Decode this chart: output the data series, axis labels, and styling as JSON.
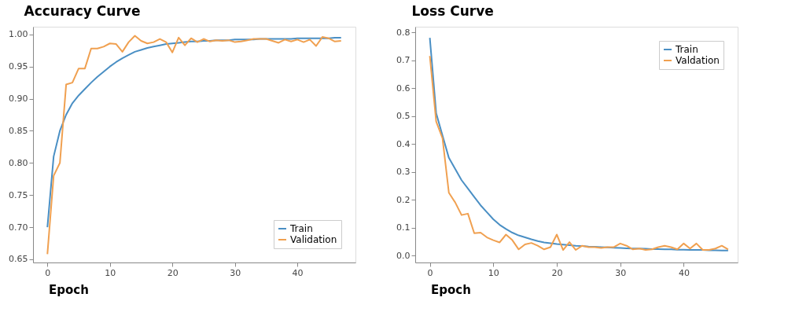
{
  "chart_data": [
    {
      "type": "line",
      "title": "Accuracy Curve",
      "xlabel": "Epoch",
      "x": [
        0,
        1,
        2,
        3,
        4,
        5,
        6,
        7,
        8,
        9,
        10,
        11,
        12,
        13,
        14,
        15,
        16,
        17,
        18,
        19,
        20,
        21,
        22,
        23,
        24,
        25,
        26,
        27,
        28,
        29,
        30,
        31,
        32,
        33,
        34,
        35,
        36,
        37,
        38,
        39,
        40,
        41,
        42,
        43,
        44,
        45,
        46,
        47
      ],
      "series": [
        {
          "name": "Train",
          "color": "#4a8fc4",
          "values": [
            0.7,
            0.81,
            0.85,
            0.875,
            0.893,
            0.905,
            0.915,
            0.925,
            0.934,
            0.942,
            0.95,
            0.957,
            0.963,
            0.968,
            0.973,
            0.976,
            0.979,
            0.981,
            0.983,
            0.985,
            0.986,
            0.987,
            0.988,
            0.989,
            0.989,
            0.99,
            0.99,
            0.991,
            0.991,
            0.991,
            0.992,
            0.992,
            0.992,
            0.992,
            0.993,
            0.993,
            0.993,
            0.993,
            0.993,
            0.993,
            0.994,
            0.994,
            0.994,
            0.994,
            0.994,
            0.994,
            0.995,
            0.995
          ]
        },
        {
          "name": "Validation",
          "color": "#f0a050",
          "values": [
            0.658,
            0.78,
            0.8,
            0.922,
            0.925,
            0.947,
            0.947,
            0.978,
            0.978,
            0.981,
            0.986,
            0.985,
            0.973,
            0.988,
            0.998,
            0.99,
            0.986,
            0.988,
            0.993,
            0.988,
            0.972,
            0.995,
            0.983,
            0.994,
            0.988,
            0.993,
            0.989,
            0.991,
            0.99,
            0.991,
            0.988,
            0.989,
            0.991,
            0.993,
            0.993,
            0.993,
            0.99,
            0.987,
            0.992,
            0.989,
            0.992,
            0.988,
            0.992,
            0.982,
            0.996,
            0.994,
            0.989,
            0.99
          ]
        }
      ],
      "xlim": [
        -2.3,
        49.3
      ],
      "xticks": [
        0,
        10,
        20,
        30,
        40
      ],
      "ylim": [
        0.645,
        1.012
      ],
      "yticks": [
        {
          "value": 0.65,
          "label": "0.65"
        },
        {
          "value": 0.7,
          "label": "0.70"
        },
        {
          "value": 0.75,
          "label": "0.75"
        },
        {
          "value": 0.8,
          "label": "0.80"
        },
        {
          "value": 0.85,
          "label": "0.85"
        },
        {
          "value": 0.9,
          "label": "0.90"
        },
        {
          "value": 0.95,
          "label": "0.95"
        },
        {
          "value": 1.0,
          "label": "1.00"
        }
      ],
      "legend": "bottom right",
      "grid": false,
      "marker": "none",
      "line_style": "solid"
    },
    {
      "type": "line",
      "title": "Loss Curve",
      "xlabel": "Epoch",
      "x": [
        0,
        1,
        2,
        3,
        4,
        5,
        6,
        7,
        8,
        9,
        10,
        11,
        12,
        13,
        14,
        15,
        16,
        17,
        18,
        19,
        20,
        21,
        22,
        23,
        24,
        25,
        26,
        27,
        28,
        29,
        30,
        31,
        32,
        33,
        34,
        35,
        36,
        37,
        38,
        39,
        40,
        41,
        42,
        43,
        44,
        45,
        46,
        47
      ],
      "series": [
        {
          "name": "Train",
          "color": "#4a8fc4",
          "values": [
            0.78,
            0.51,
            0.43,
            0.35,
            0.31,
            0.27,
            0.24,
            0.21,
            0.18,
            0.155,
            0.13,
            0.11,
            0.095,
            0.082,
            0.072,
            0.065,
            0.058,
            0.052,
            0.047,
            0.044,
            0.041,
            0.039,
            0.037,
            0.035,
            0.034,
            0.032,
            0.031,
            0.03,
            0.029,
            0.028,
            0.027,
            0.026,
            0.025,
            0.025,
            0.024,
            0.023,
            0.023,
            0.022,
            0.022,
            0.021,
            0.021,
            0.02,
            0.02,
            0.02,
            0.019,
            0.019,
            0.018,
            0.018
          ]
        },
        {
          "name": "Valdation",
          "color": "#f0a050",
          "values": [
            0.715,
            0.48,
            0.42,
            0.225,
            0.19,
            0.145,
            0.15,
            0.08,
            0.082,
            0.065,
            0.055,
            0.047,
            0.075,
            0.055,
            0.022,
            0.04,
            0.045,
            0.035,
            0.022,
            0.03,
            0.075,
            0.02,
            0.048,
            0.02,
            0.035,
            0.03,
            0.03,
            0.027,
            0.03,
            0.03,
            0.043,
            0.035,
            0.022,
            0.025,
            0.02,
            0.022,
            0.03,
            0.035,
            0.03,
            0.022,
            0.043,
            0.025,
            0.043,
            0.02,
            0.02,
            0.025,
            0.035,
            0.022
          ]
        }
      ],
      "xlim": [
        -2.3,
        48.5
      ],
      "xticks": [
        0,
        10,
        20,
        30,
        40
      ],
      "ylim": [
        -0.025,
        0.82
      ],
      "yticks": [
        {
          "value": 0,
          "label": "0.0"
        },
        0.1,
        0.2,
        0.3,
        0.4,
        0.5,
        0.6,
        0.7,
        0.8
      ],
      "legend": "top right",
      "grid": false,
      "marker": "none",
      "line_style": "solid"
    }
  ]
}
